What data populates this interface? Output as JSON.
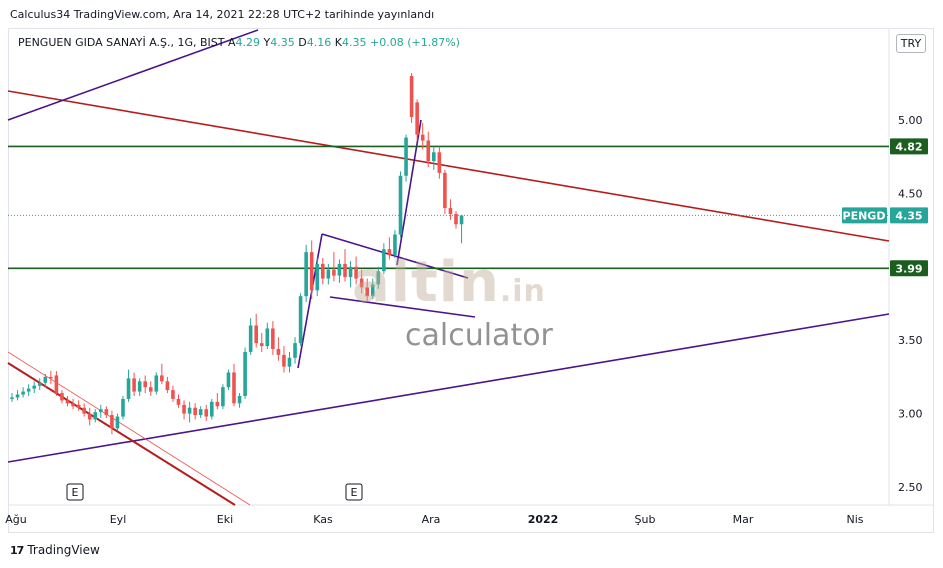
{
  "header": {
    "publish_text": "Calculus34 TradingView.com, Ara 14, 2021 22:28 UTC+2 tarihinde yayınlandı"
  },
  "legend": {
    "symbol_text": "PENGUEN GIDA SANAYİ A.Ş., 1G, BIST",
    "open_label": "A",
    "open_value": "4.29",
    "high_label": "Y",
    "high_value": "4.35",
    "low_label": "D",
    "low_value": "4.16",
    "close_label": "K",
    "close_value": "4.35",
    "change_text": "+0.08 (+1.87%)"
  },
  "currency_badge": "TRY",
  "watermark": {
    "brand": "altin",
    "brand_suffix": ".in",
    "sub": "calculator"
  },
  "footer": {
    "logo_text": "17",
    "brand": "TradingView"
  },
  "earnings_markers": [
    "E",
    "E"
  ],
  "colors": {
    "up": "#26a69a",
    "down": "#ef5350",
    "hline": "#1b5e20",
    "trend_red": "#b71c1c",
    "trend_purple": "#4a148c",
    "last_price": "#26a69a"
  },
  "chart_data": {
    "type": "candlestick",
    "symbol": "PENGD",
    "title": "PENGUEN GIDA SANAYİ A.Ş., 1G, BIST",
    "ylim": [
      2.4,
      5.5
    ],
    "y_ticks": [
      "2.50",
      "3.00",
      "3.50",
      "4.00",
      "4.50",
      "5.00"
    ],
    "x_ticks": [
      "Ağu",
      "Eyl",
      "Eki",
      "Kas",
      "Ara",
      "2022",
      "Şub",
      "Mar",
      "Nis"
    ],
    "price_labels": [
      {
        "label": "4.82",
        "value": 4.82,
        "type": "horizontal-line"
      },
      {
        "label": "3.99",
        "value": 3.99,
        "type": "horizontal-line"
      },
      {
        "label": "PENGD",
        "value_label": "4.35",
        "value": 4.35,
        "type": "last-price"
      }
    ],
    "candles": [
      {
        "o": 3.1,
        "h": 3.14,
        "l": 3.08,
        "c": 3.11
      },
      {
        "o": 3.11,
        "h": 3.16,
        "l": 3.09,
        "c": 3.13
      },
      {
        "o": 3.13,
        "h": 3.18,
        "l": 3.11,
        "c": 3.15
      },
      {
        "o": 3.15,
        "h": 3.2,
        "l": 3.12,
        "c": 3.17
      },
      {
        "o": 3.17,
        "h": 3.22,
        "l": 3.14,
        "c": 3.19
      },
      {
        "o": 3.19,
        "h": 3.24,
        "l": 3.16,
        "c": 3.21
      },
      {
        "o": 3.21,
        "h": 3.27,
        "l": 3.18,
        "c": 3.25
      },
      {
        "o": 3.25,
        "h": 3.29,
        "l": 3.2,
        "c": 3.24
      },
      {
        "o": 3.26,
        "h": 3.29,
        "l": 3.12,
        "c": 3.14
      },
      {
        "o": 3.14,
        "h": 3.16,
        "l": 3.07,
        "c": 3.09
      },
      {
        "o": 3.09,
        "h": 3.12,
        "l": 3.05,
        "c": 3.07
      },
      {
        "o": 3.07,
        "h": 3.1,
        "l": 3.03,
        "c": 3.05
      },
      {
        "o": 3.06,
        "h": 3.09,
        "l": 3.02,
        "c": 3.04
      },
      {
        "o": 3.04,
        "h": 3.07,
        "l": 2.98,
        "c": 3.0
      },
      {
        "o": 3.0,
        "h": 3.04,
        "l": 2.92,
        "c": 2.96
      },
      {
        "o": 2.96,
        "h": 3.03,
        "l": 2.94,
        "c": 3.01
      },
      {
        "o": 3.01,
        "h": 3.06,
        "l": 2.97,
        "c": 3.03
      },
      {
        "o": 3.03,
        "h": 3.05,
        "l": 2.97,
        "c": 2.99
      },
      {
        "o": 2.99,
        "h": 3.02,
        "l": 2.86,
        "c": 2.9
      },
      {
        "o": 2.9,
        "h": 3.0,
        "l": 2.88,
        "c": 2.98
      },
      {
        "o": 2.98,
        "h": 3.12,
        "l": 2.96,
        "c": 3.1
      },
      {
        "o": 3.1,
        "h": 3.3,
        "l": 3.08,
        "c": 3.24
      },
      {
        "o": 3.24,
        "h": 3.28,
        "l": 3.12,
        "c": 3.15
      },
      {
        "o": 3.15,
        "h": 3.24,
        "l": 3.12,
        "c": 3.22
      },
      {
        "o": 3.22,
        "h": 3.26,
        "l": 3.14,
        "c": 3.18
      },
      {
        "o": 3.18,
        "h": 3.22,
        "l": 3.12,
        "c": 3.15
      },
      {
        "o": 3.15,
        "h": 3.28,
        "l": 3.13,
        "c": 3.26
      },
      {
        "o": 3.26,
        "h": 3.34,
        "l": 3.2,
        "c": 3.22
      },
      {
        "o": 3.22,
        "h": 3.25,
        "l": 3.14,
        "c": 3.16
      },
      {
        "o": 3.16,
        "h": 3.19,
        "l": 3.08,
        "c": 3.1
      },
      {
        "o": 3.1,
        "h": 3.13,
        "l": 3.04,
        "c": 3.06
      },
      {
        "o": 3.06,
        "h": 3.09,
        "l": 2.96,
        "c": 3.0
      },
      {
        "o": 3.0,
        "h": 3.08,
        "l": 2.94,
        "c": 3.04
      },
      {
        "o": 3.04,
        "h": 3.07,
        "l": 2.96,
        "c": 2.99
      },
      {
        "o": 2.99,
        "h": 3.05,
        "l": 2.97,
        "c": 3.03
      },
      {
        "o": 3.03,
        "h": 3.06,
        "l": 2.95,
        "c": 2.98
      },
      {
        "o": 2.98,
        "h": 3.1,
        "l": 2.96,
        "c": 3.08
      },
      {
        "o": 3.08,
        "h": 3.14,
        "l": 3.03,
        "c": 3.05
      },
      {
        "o": 3.05,
        "h": 3.2,
        "l": 3.03,
        "c": 3.18
      },
      {
        "o": 3.18,
        "h": 3.3,
        "l": 3.16,
        "c": 3.28
      },
      {
        "o": 3.28,
        "h": 3.34,
        "l": 3.05,
        "c": 3.07
      },
      {
        "o": 3.07,
        "h": 3.14,
        "l": 3.04,
        "c": 3.12
      },
      {
        "o": 3.12,
        "h": 3.45,
        "l": 3.1,
        "c": 3.42
      },
      {
        "o": 3.42,
        "h": 3.65,
        "l": 3.4,
        "c": 3.6
      },
      {
        "o": 3.6,
        "h": 3.68,
        "l": 3.45,
        "c": 3.48
      },
      {
        "o": 3.48,
        "h": 3.55,
        "l": 3.42,
        "c": 3.46
      },
      {
        "o": 3.46,
        "h": 3.62,
        "l": 3.44,
        "c": 3.58
      },
      {
        "o": 3.58,
        "h": 3.63,
        "l": 3.4,
        "c": 3.44
      },
      {
        "o": 3.44,
        "h": 3.52,
        "l": 3.36,
        "c": 3.4
      },
      {
        "o": 3.4,
        "h": 3.46,
        "l": 3.28,
        "c": 3.32
      },
      {
        "o": 3.32,
        "h": 3.42,
        "l": 3.28,
        "c": 3.38
      },
      {
        "o": 3.38,
        "h": 3.52,
        "l": 3.34,
        "c": 3.48
      },
      {
        "o": 3.48,
        "h": 3.82,
        "l": 3.46,
        "c": 3.8
      },
      {
        "o": 3.8,
        "h": 4.15,
        "l": 3.76,
        "c": 4.1
      },
      {
        "o": 4.1,
        "h": 4.18,
        "l": 3.78,
        "c": 3.84
      },
      {
        "o": 3.84,
        "h": 4.06,
        "l": 3.8,
        "c": 4.02
      },
      {
        "o": 4.02,
        "h": 4.06,
        "l": 3.88,
        "c": 3.92
      },
      {
        "o": 3.92,
        "h": 4.02,
        "l": 3.88,
        "c": 3.98
      },
      {
        "o": 3.98,
        "h": 4.1,
        "l": 3.9,
        "c": 3.94
      },
      {
        "o": 3.94,
        "h": 4.05,
        "l": 3.89,
        "c": 4.02
      },
      {
        "o": 4.02,
        "h": 4.12,
        "l": 3.9,
        "c": 3.93
      },
      {
        "o": 3.93,
        "h": 4.04,
        "l": 3.86,
        "c": 4.0
      },
      {
        "o": 4.0,
        "h": 4.07,
        "l": 3.88,
        "c": 3.92
      },
      {
        "o": 3.92,
        "h": 3.98,
        "l": 3.82,
        "c": 3.86
      },
      {
        "o": 3.86,
        "h": 3.92,
        "l": 3.76,
        "c": 3.8
      },
      {
        "o": 3.8,
        "h": 3.92,
        "l": 3.78,
        "c": 3.88
      },
      {
        "o": 3.88,
        "h": 4.0,
        "l": 3.85,
        "c": 3.97
      },
      {
        "o": 3.97,
        "h": 4.16,
        "l": 3.95,
        "c": 4.12
      },
      {
        "o": 4.12,
        "h": 4.2,
        "l": 4.05,
        "c": 4.08
      },
      {
        "o": 4.08,
        "h": 4.25,
        "l": 4.06,
        "c": 4.22
      },
      {
        "o": 4.22,
        "h": 4.65,
        "l": 4.2,
        "c": 4.62
      },
      {
        "o": 4.62,
        "h": 4.9,
        "l": 4.58,
        "c": 4.88
      },
      {
        "o": 5.3,
        "h": 5.32,
        "l": 4.98,
        "c": 5.02
      },
      {
        "o": 5.12,
        "h": 5.14,
        "l": 4.86,
        "c": 4.9
      },
      {
        "o": 4.9,
        "h": 4.98,
        "l": 4.8,
        "c": 4.86
      },
      {
        "o": 4.86,
        "h": 4.92,
        "l": 4.68,
        "c": 4.72
      },
      {
        "o": 4.72,
        "h": 4.82,
        "l": 4.66,
        "c": 4.78
      },
      {
        "o": 4.78,
        "h": 4.82,
        "l": 4.6,
        "c": 4.64
      },
      {
        "o": 4.64,
        "h": 4.66,
        "l": 4.36,
        "c": 4.4
      },
      {
        "o": 4.4,
        "h": 4.46,
        "l": 4.32,
        "c": 4.36
      },
      {
        "o": 4.36,
        "h": 4.38,
        "l": 4.26,
        "c": 4.29
      },
      {
        "o": 4.29,
        "h": 4.35,
        "l": 4.16,
        "c": 4.35
      }
    ]
  }
}
